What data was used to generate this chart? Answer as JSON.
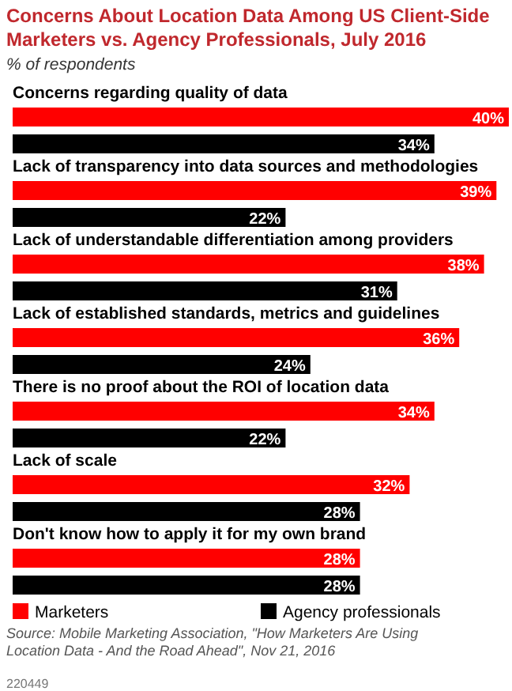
{
  "chart_data": {
    "type": "bar",
    "orientation": "horizontal",
    "title": "Concerns About Location Data Among US Client-Side Marketers vs. Agency Professionals, July 2016",
    "subtitle": "% of respondents",
    "categories": [
      "Concerns regarding quality of data",
      "Lack of transparency into data sources and methodologies",
      "Lack of understandable differentiation among providers",
      "Lack of established standards, metrics and guidelines",
      "There is no proof about the ROI of location data",
      "Lack of scale",
      "Don't know how to apply it for my own brand"
    ],
    "series": [
      {
        "name": "Marketers",
        "color": "#ff0000",
        "values": [
          40,
          39,
          38,
          36,
          34,
          32,
          28
        ],
        "value_labels": [
          "40%",
          "39%",
          "38%",
          "36%",
          "34%",
          "32%",
          "28%"
        ]
      },
      {
        "name": "Agency professionals",
        "color": "#000000",
        "values": [
          34,
          22,
          31,
          24,
          22,
          28,
          28
        ],
        "value_labels": [
          "34%",
          "22%",
          "31%",
          "24%",
          "22%",
          "28%",
          "28%"
        ]
      }
    ],
    "legend": "bottom",
    "annotations": [
      "Source: Mobile Marketing Association, \"How Marketers Are Using Location Data - And the Road Ahead\", Nov 21, 2016",
      "220449"
    ]
  }
}
